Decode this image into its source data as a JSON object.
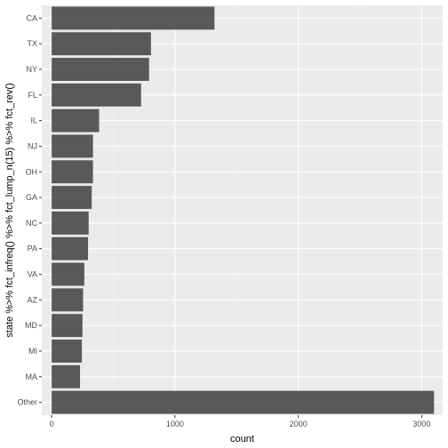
{
  "chart_data": {
    "type": "bar",
    "orientation": "horizontal",
    "categories": [
      "CA",
      "TX",
      "NY",
      "FL",
      "IL",
      "NJ",
      "OH",
      "GA",
      "NC",
      "PA",
      "VA",
      "AZ",
      "MD",
      "MI",
      "MA",
      "Other"
    ],
    "values": [
      1320,
      805,
      790,
      725,
      385,
      335,
      335,
      325,
      300,
      295,
      265,
      255,
      250,
      245,
      230,
      3100
    ],
    "xlabel": "count",
    "ylabel": "state %>% fct_infreq() %>% fct_lump_n(15) %>% fct_rev()",
    "xlim": [
      -80,
      3170
    ],
    "x_ticks": [
      0,
      1000,
      2000,
      3000
    ],
    "grid": true,
    "colors": {
      "panel_background": "#ebebeb",
      "grid_major": "#ffffff",
      "grid_minor": "#f5f5f5",
      "bar_fill": "#595959",
      "tick_text": "#4d4d4d",
      "axis_title": "#000000"
    }
  }
}
